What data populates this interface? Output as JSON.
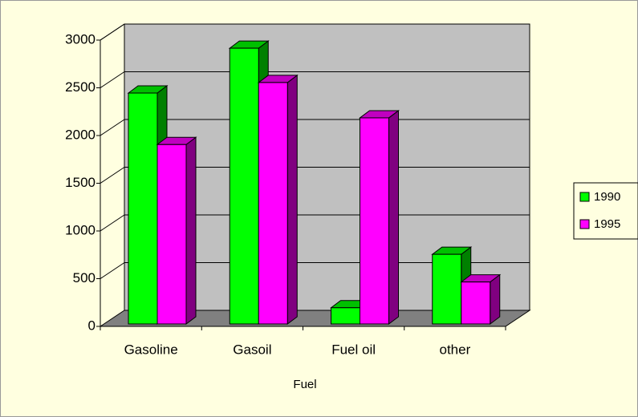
{
  "chart_data": {
    "type": "bar3d",
    "x_label": "Fuel",
    "categories": [
      "Gasoline",
      "Gasoil",
      "Fuel oil",
      "other"
    ],
    "series": [
      {
        "name": "1990",
        "color": "#00ff00",
        "values": [
          2420,
          2890,
          170,
          730
        ]
      },
      {
        "name": "1995",
        "color": "#ff00ff",
        "values": [
          1880,
          2530,
          2160,
          440
        ]
      }
    ],
    "ylim": [
      0,
      3000
    ],
    "yticks": [
      0,
      500,
      1000,
      1500,
      2000,
      2500,
      3000
    ],
    "grid": true,
    "legend": "right"
  }
}
